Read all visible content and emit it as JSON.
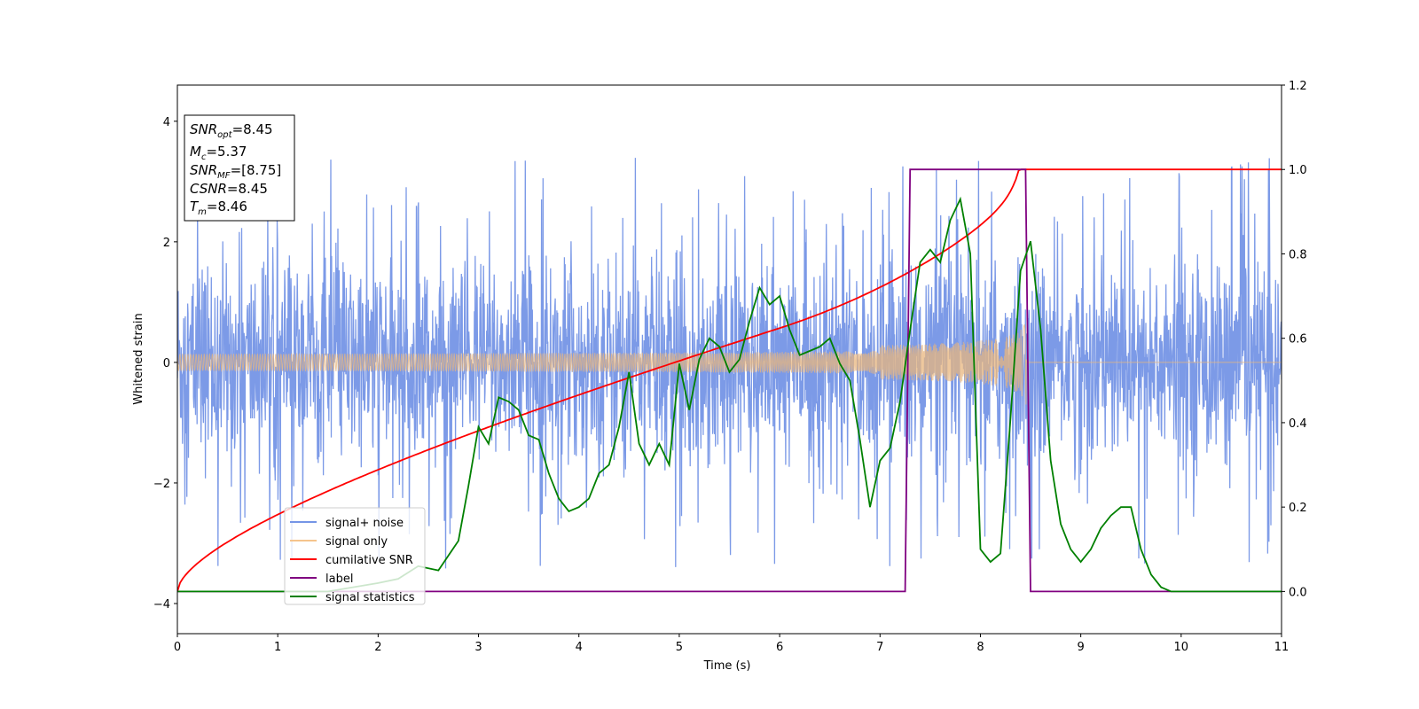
{
  "chart_data": {
    "type": "line",
    "xlabel": "Time (s)",
    "ylabel_left": "Whitened strain",
    "xlim": [
      0,
      11
    ],
    "ylim_left": [
      -4.5,
      4.6
    ],
    "ylim_right": [
      -0.1,
      1.2
    ],
    "x_ticks": [
      "0",
      "1",
      "2",
      "3",
      "4",
      "5",
      "6",
      "7",
      "8",
      "9",
      "10",
      "11"
    ],
    "y_ticks_left": [
      "4",
      "2",
      "0",
      "−2",
      "−4"
    ],
    "y_ticks_right": [
      "1.2",
      "1.0",
      "0.8",
      "0.6",
      "0.4",
      "0.2",
      "0.0"
    ],
    "grid": false,
    "legend_position": "lower-left",
    "info_box": {
      "position": "top-left",
      "lines": [
        {
          "main": "SNR",
          "sub": "opt",
          "rest": "=8.45"
        },
        {
          "main": "M",
          "sub": "c",
          "rest": "=5.37"
        },
        {
          "main": "SNR",
          "sub": "MF",
          "rest": "=[8.75]"
        },
        {
          "main": "CSNR",
          "sub": "",
          "rest": "=8.45"
        },
        {
          "main": "T",
          "sub": "m",
          "rest": "=8.46"
        }
      ]
    },
    "series": [
      {
        "name": "signal+ noise",
        "axis": "left",
        "color": "#7595e6",
        "description_values": {
          "noise_band_typical": [
            -1.8,
            1.8
          ],
          "spikes_max": 4.2,
          "spikes_min": -4.1
        }
      },
      {
        "name": "signal only",
        "axis": "left",
        "color": "#f5c48c",
        "chirp": {
          "t_start": 0,
          "t_merge": 8.46,
          "amplitude_at_merge": 0.6
        }
      },
      {
        "name": "cumilative SNR",
        "axis": "right",
        "color": "#ff0000",
        "x": [
          0,
          0.5,
          1,
          2,
          3,
          4,
          5,
          6,
          7,
          7.5,
          8,
          8.2,
          8.4,
          8.46,
          11
        ],
        "y": [
          0.0,
          0.07,
          0.11,
          0.19,
          0.26,
          0.33,
          0.39,
          0.46,
          0.56,
          0.63,
          0.76,
          0.84,
          0.95,
          1.0,
          1.0
        ]
      },
      {
        "name": "label",
        "axis": "right",
        "color": "#800080",
        "x": [
          0,
          7.25,
          7.3,
          8.45,
          8.5,
          11
        ],
        "y": [
          0,
          0,
          1,
          1,
          0,
          0
        ]
      },
      {
        "name": "signal statistics",
        "axis": "right",
        "color": "#008000",
        "x": [
          0,
          1.5,
          2,
          2.2,
          2.4,
          2.6,
          2.8,
          2.9,
          3.0,
          3.1,
          3.2,
          3.3,
          3.4,
          3.5,
          3.6,
          3.7,
          3.8,
          3.9,
          4.0,
          4.1,
          4.2,
          4.3,
          4.4,
          4.5,
          4.6,
          4.7,
          4.8,
          4.9,
          5.0,
          5.1,
          5.2,
          5.3,
          5.4,
          5.5,
          5.6,
          5.7,
          5.8,
          5.9,
          6.0,
          6.1,
          6.2,
          6.3,
          6.4,
          6.5,
          6.6,
          6.7,
          6.8,
          6.9,
          7.0,
          7.1,
          7.2,
          7.3,
          7.4,
          7.5,
          7.6,
          7.7,
          7.8,
          7.9,
          8.0,
          8.1,
          8.2,
          8.3,
          8.4,
          8.5,
          8.6,
          8.7,
          8.8,
          8.9,
          9.0,
          9.1,
          9.2,
          9.3,
          9.4,
          9.5,
          9.6,
          9.7,
          9.8,
          9.9,
          10.0,
          11
        ],
        "y": [
          0.0,
          0.0,
          0.02,
          0.03,
          0.06,
          0.05,
          0.12,
          0.25,
          0.39,
          0.35,
          0.46,
          0.45,
          0.43,
          0.37,
          0.36,
          0.28,
          0.22,
          0.19,
          0.2,
          0.22,
          0.28,
          0.3,
          0.39,
          0.52,
          0.35,
          0.3,
          0.35,
          0.3,
          0.54,
          0.43,
          0.55,
          0.6,
          0.58,
          0.52,
          0.55,
          0.64,
          0.72,
          0.68,
          0.7,
          0.62,
          0.56,
          0.57,
          0.58,
          0.6,
          0.54,
          0.5,
          0.36,
          0.2,
          0.31,
          0.34,
          0.45,
          0.62,
          0.78,
          0.81,
          0.78,
          0.88,
          0.93,
          0.8,
          0.1,
          0.07,
          0.09,
          0.41,
          0.76,
          0.83,
          0.62,
          0.31,
          0.16,
          0.1,
          0.07,
          0.1,
          0.15,
          0.18,
          0.2,
          0.2,
          0.1,
          0.04,
          0.01,
          0.0,
          0.0,
          0.0
        ]
      }
    ]
  }
}
